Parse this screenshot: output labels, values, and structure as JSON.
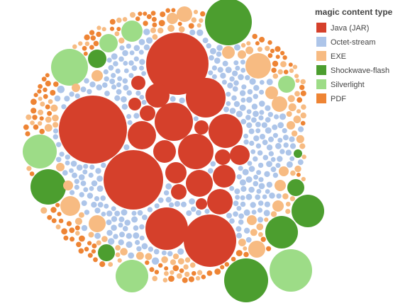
{
  "chart_data": {
    "type": "bubble-pack",
    "legend": {
      "title": "magic content type",
      "placement": "top-right",
      "entries": [
        {
          "key": "jar",
          "label": "Java (JAR)",
          "color": "#d5402b"
        },
        {
          "key": "octet",
          "label": "Octet-stream",
          "color": "#adc5e9"
        },
        {
          "key": "exe",
          "label": "EXE",
          "color": "#f7bb82"
        },
        {
          "key": "swf",
          "label": "Shockwave-flash",
          "color": "#4c9e2f"
        },
        {
          "key": "silv",
          "label": "Silverlight",
          "color": "#9ddc87"
        },
        {
          "key": "pdf",
          "label": "PDF",
          "color": "#ee8434"
        }
      ]
    },
    "series_counts_estimated": {
      "jar": 30,
      "octet": 300,
      "exe": 150,
      "swf": 9,
      "silv": 7,
      "pdf": 110
    }
  }
}
